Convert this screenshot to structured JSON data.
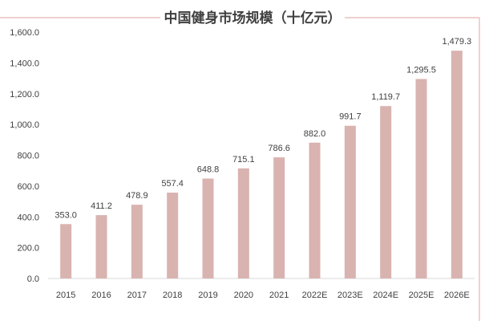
{
  "chart_data": {
    "type": "bar",
    "title": "中国健身市场规模（十亿元）",
    "categories": [
      "2015",
      "2016",
      "2017",
      "2018",
      "2019",
      "2020",
      "2021",
      "2022E",
      "2023E",
      "2024E",
      "2025E",
      "2026E"
    ],
    "values": [
      353.0,
      411.2,
      478.9,
      557.4,
      648.8,
      715.1,
      786.6,
      882.0,
      991.7,
      1119.7,
      1295.5,
      1479.3
    ],
    "data_labels": [
      "353.0",
      "411.2",
      "478.9",
      "557.4",
      "648.8",
      "715.1",
      "786.6",
      "882.0",
      "991.7",
      "1,119.7",
      "1,295.5",
      "1,479.3"
    ],
    "y_ticks": [
      "0.0",
      "200.0",
      "400.0",
      "600.0",
      "800.0",
      "1,000.0",
      "1,200.0",
      "1,400.0",
      "1,600.0"
    ],
    "ylim": [
      0,
      1600
    ],
    "xlabel": "",
    "ylabel": "",
    "grid": false,
    "legend": "none",
    "colors": {
      "bar": "#d9b3b0",
      "frame": "#e8b4b0",
      "axis": "#d9d9d9"
    }
  }
}
